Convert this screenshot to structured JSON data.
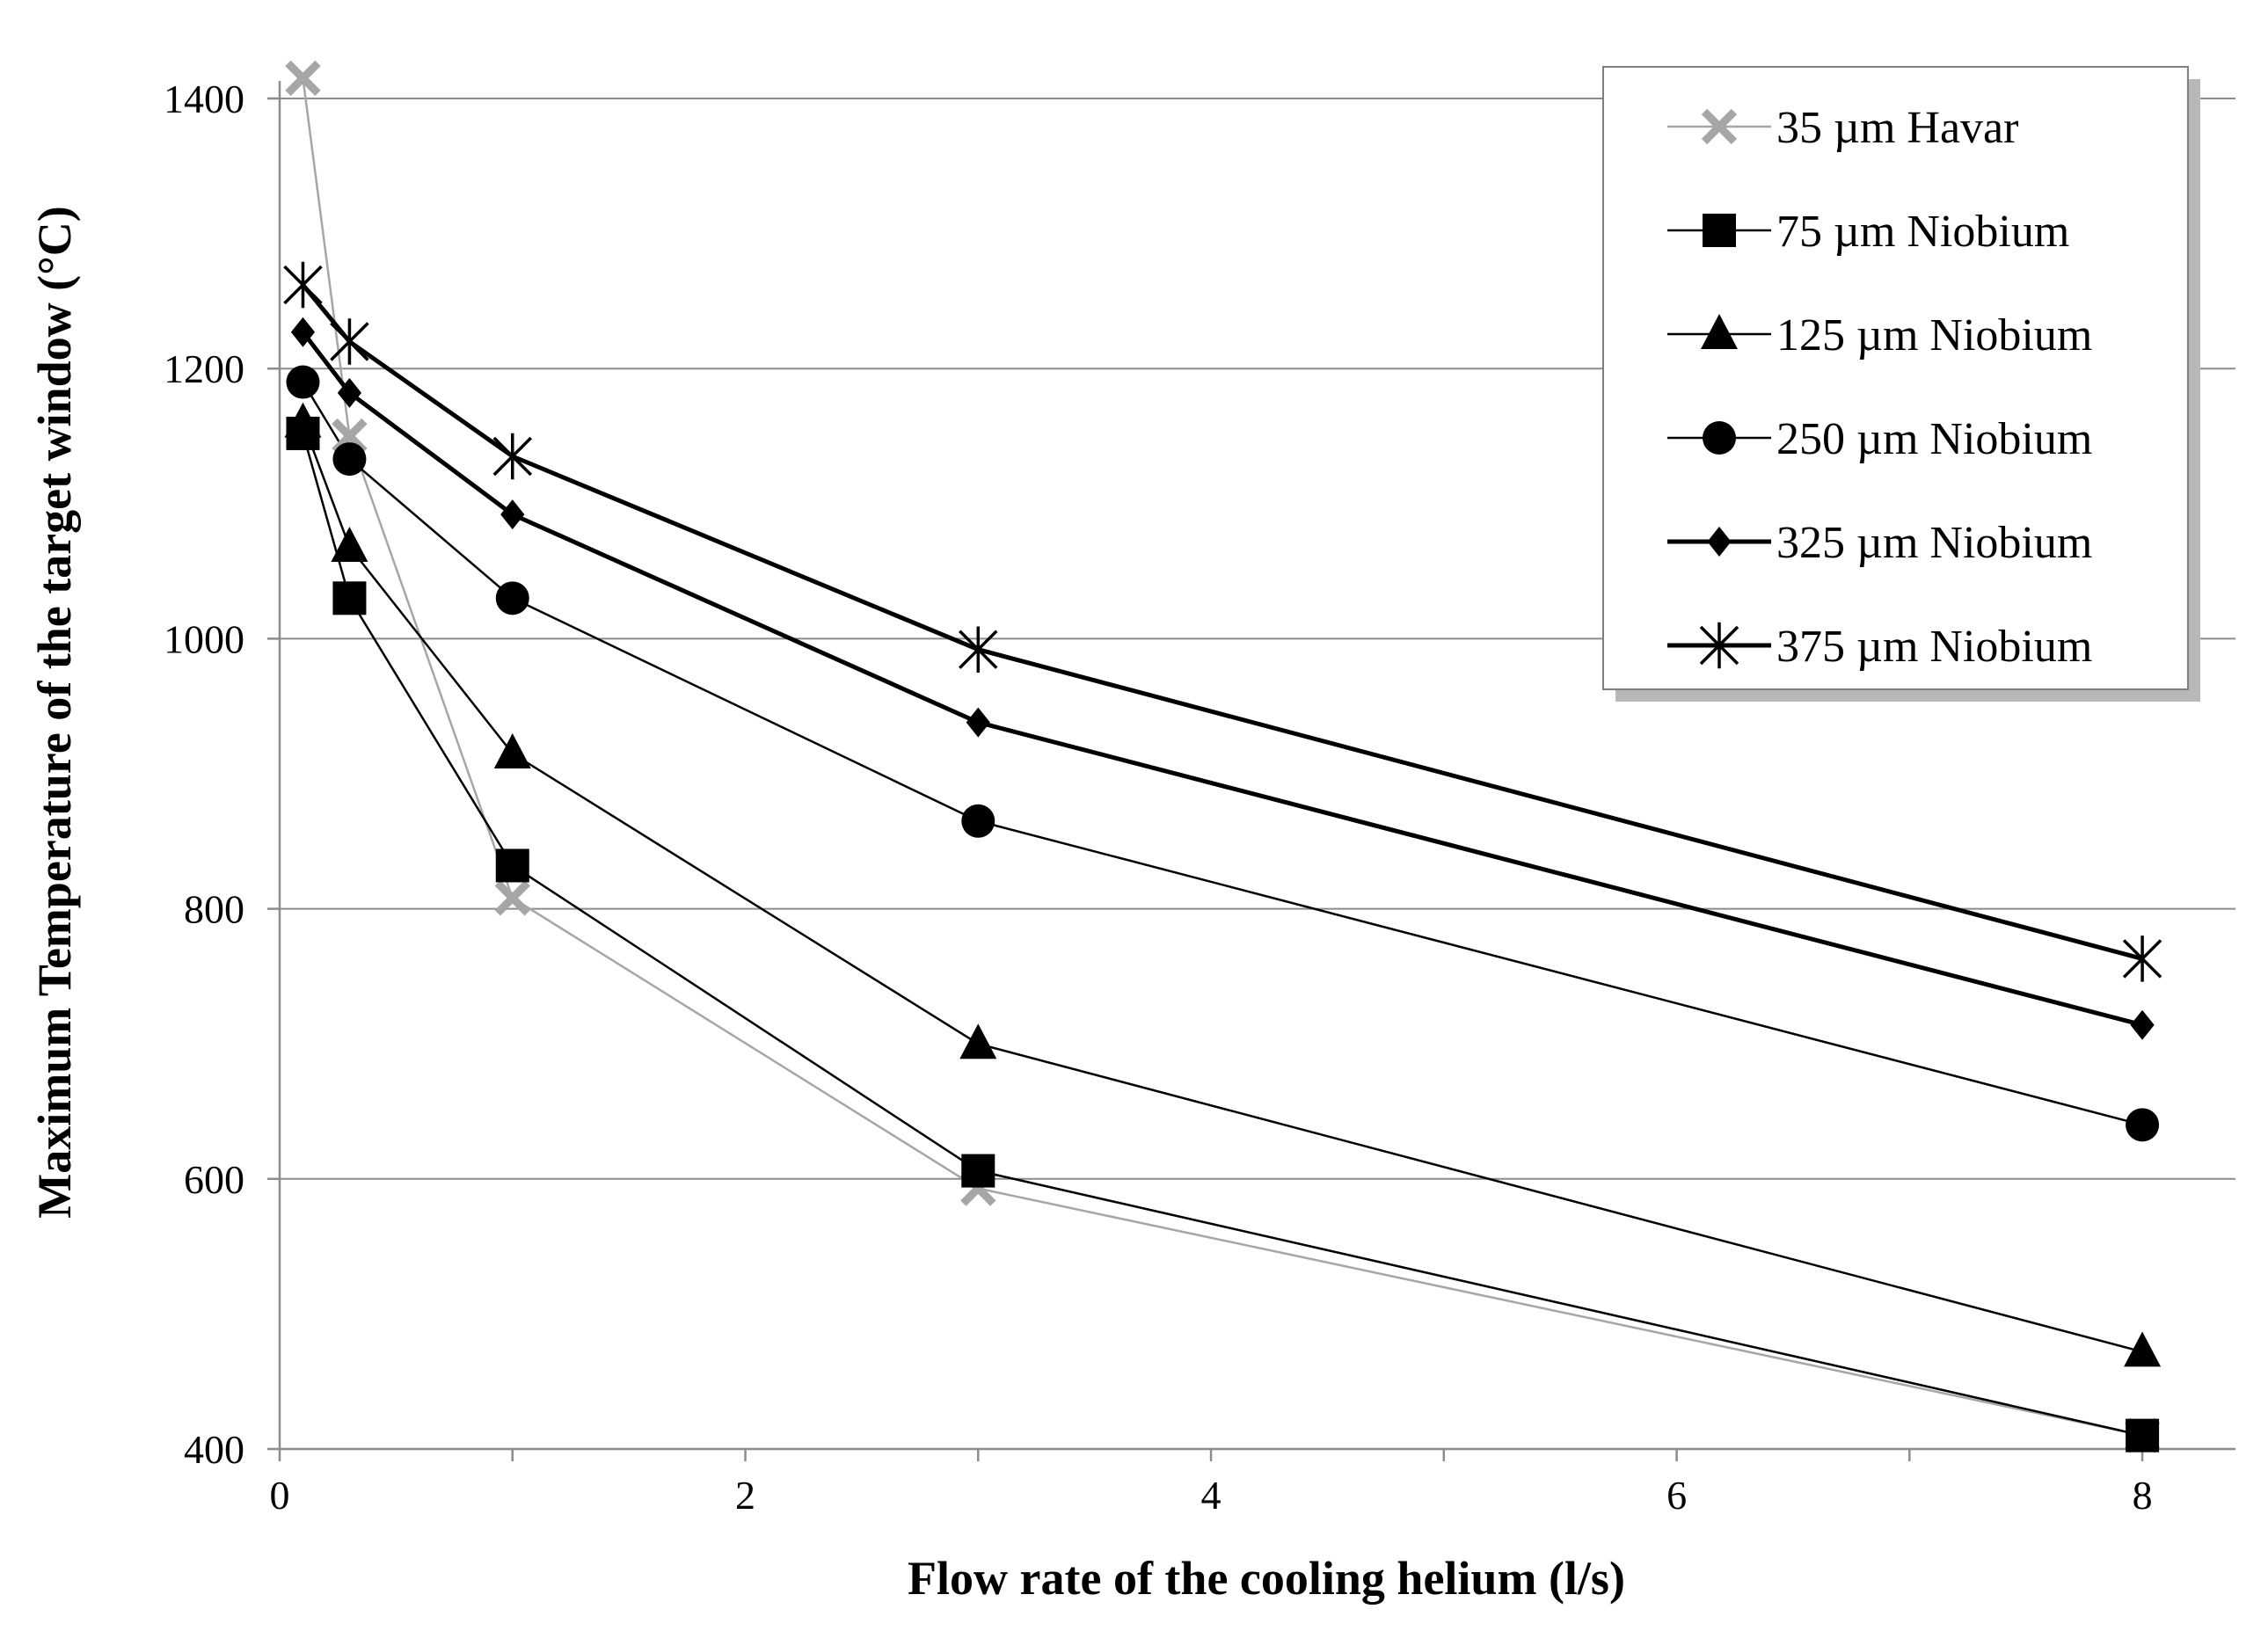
{
  "chart_data": {
    "type": "line",
    "title": "",
    "xlabel": "Flow rate of the cooling helium (l/s)",
    "ylabel": "Maximum Temperature of the target window (°C)",
    "xlim": [
      0,
      8.4
    ],
    "ylim": [
      400,
      1400
    ],
    "xticks": [
      0,
      2,
      4,
      6,
      8
    ],
    "yticks": [
      400,
      600,
      800,
      1000,
      1200,
      1400
    ],
    "grid": "horizontal",
    "legend_position": "top-right",
    "series": [
      {
        "name": "35 µm Havar",
        "marker": "x",
        "color": "#a6a6a6",
        "weight": "thin",
        "x": [
          0.1,
          0.3,
          1,
          3,
          8
        ],
        "y": [
          1415,
          1150,
          808,
          593,
          410
        ]
      },
      {
        "name": "75 µm Niobium",
        "marker": "square",
        "color": "#000000",
        "weight": "thin",
        "x": [
          0.1,
          0.3,
          1,
          3,
          8
        ],
        "y": [
          1152,
          1030,
          832,
          606,
          410
        ]
      },
      {
        "name": "125 µm Niobium",
        "marker": "triangle",
        "color": "#000000",
        "weight": "thin",
        "x": [
          0.1,
          0.3,
          1,
          3,
          8
        ],
        "y": [
          1160,
          1068,
          915,
          700,
          472
        ]
      },
      {
        "name": "250 µm Niobium",
        "marker": "circle",
        "color": "#000000",
        "weight": "thin",
        "x": [
          0.1,
          0.3,
          1,
          3,
          8
        ],
        "y": [
          1190,
          1133,
          1030,
          865,
          640
        ]
      },
      {
        "name": "325 µm Niobium",
        "marker": "diamond",
        "color": "#000000",
        "weight": "thick",
        "x": [
          0.1,
          0.3,
          1,
          3,
          8
        ],
        "y": [
          1227,
          1182,
          1092,
          938,
          714
        ]
      },
      {
        "name": "375 µm Niobium",
        "marker": "asterisk",
        "color": "#000000",
        "weight": "thick",
        "x": [
          0.1,
          0.3,
          1,
          3,
          8
        ],
        "y": [
          1262,
          1220,
          1135,
          992,
          763
        ]
      }
    ]
  }
}
